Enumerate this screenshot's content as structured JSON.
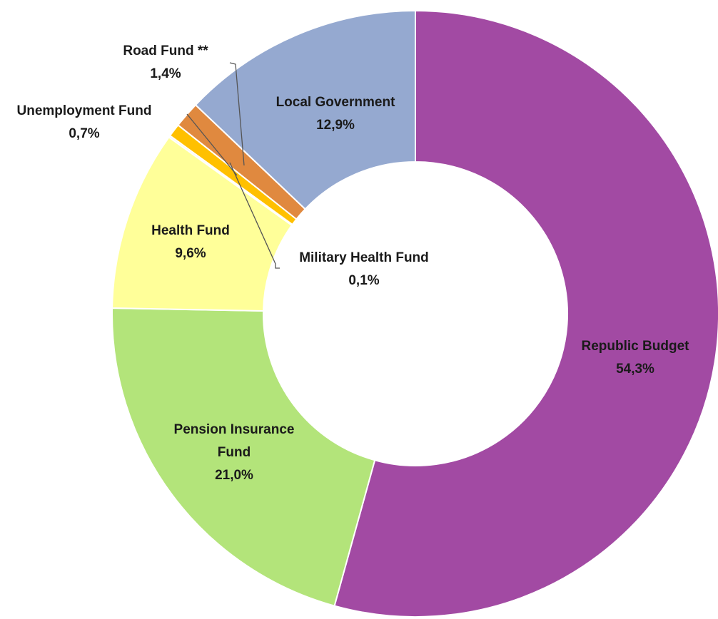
{
  "chart_data": {
    "type": "pie",
    "donut": true,
    "categories": [
      "Republic Budget",
      "Pension Insurance Fund",
      "Health Fund",
      "Military Health Fund",
      "Unemployment Fund",
      "Road Fund **",
      "Local Government"
    ],
    "values": [
      54.3,
      21.0,
      9.6,
      0.1,
      0.7,
      1.4,
      12.9
    ],
    "value_labels": [
      "54,3%",
      "21,0%",
      "9,6%",
      "0,1%",
      "0,7%",
      "1,4%",
      "12,9%"
    ],
    "colors": [
      "#a24aa3",
      "#b3e47a",
      "#ffff99",
      "#f2f2f2",
      "#ffc000",
      "#e0893f",
      "#95a9d0"
    ]
  }
}
